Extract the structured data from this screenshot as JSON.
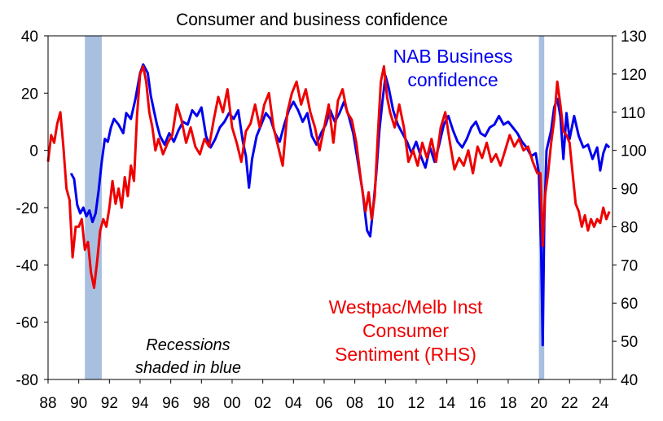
{
  "chart_data": {
    "type": "line",
    "title": "Consumer and business confidence",
    "x_range": [
      1988,
      2024.8
    ],
    "x_ticks": [
      {
        "year": 1988,
        "label": "88"
      },
      {
        "year": 1990,
        "label": "90"
      },
      {
        "year": 1992,
        "label": "92"
      },
      {
        "year": 1994,
        "label": "94"
      },
      {
        "year": 1996,
        "label": "96"
      },
      {
        "year": 1998,
        "label": "98"
      },
      {
        "year": 2000,
        "label": "00"
      },
      {
        "year": 2002,
        "label": "02"
      },
      {
        "year": 2004,
        "label": "04"
      },
      {
        "year": 2006,
        "label": "06"
      },
      {
        "year": 2008,
        "label": "08"
      },
      {
        "year": 2010,
        "label": "10"
      },
      {
        "year": 2012,
        "label": "12"
      },
      {
        "year": 2014,
        "label": "14"
      },
      {
        "year": 2016,
        "label": "16"
      },
      {
        "year": 2018,
        "label": "18"
      },
      {
        "year": 2020,
        "label": "20"
      },
      {
        "year": 2022,
        "label": "22"
      },
      {
        "year": 2024,
        "label": "24"
      }
    ],
    "y_left": {
      "range": [
        -80,
        40
      ],
      "ticks": [
        40,
        20,
        0,
        -20,
        -40,
        -60,
        -80
      ]
    },
    "y_right": {
      "range": [
        40,
        130
      ],
      "ticks": [
        130,
        120,
        110,
        100,
        90,
        80,
        70,
        60,
        50,
        40
      ]
    },
    "recessions": [
      [
        1990.4,
        1991.5
      ],
      [
        2020.0,
        2020.35
      ]
    ],
    "annotations": {
      "nab": [
        "NAB Business",
        "confidence"
      ],
      "westpac": [
        "Westpac/Melb Inst",
        "Consumer",
        "Sentiment (RHS)"
      ],
      "recession": [
        "Recessions",
        "shaded in blue"
      ]
    },
    "colors": {
      "nab": "#0000ee",
      "westpac": "#ee0000",
      "recession": "#a8bfe0"
    },
    "series": [
      {
        "name": "NAB Business confidence",
        "axis": "left",
        "points": [
          [
            1989.5,
            -8
          ],
          [
            1989.7,
            -10
          ],
          [
            1989.9,
            -19
          ],
          [
            1990.1,
            -22
          ],
          [
            1990.3,
            -20
          ],
          [
            1990.5,
            -23
          ],
          [
            1990.7,
            -21
          ],
          [
            1990.9,
            -25
          ],
          [
            1991.1,
            -22
          ],
          [
            1991.3,
            -14
          ],
          [
            1991.5,
            -4
          ],
          [
            1991.7,
            4
          ],
          [
            1991.9,
            3
          ],
          [
            1992.1,
            8
          ],
          [
            1992.3,
            11
          ],
          [
            1992.6,
            9
          ],
          [
            1992.9,
            6
          ],
          [
            1993.1,
            13
          ],
          [
            1993.4,
            11
          ],
          [
            1993.7,
            18
          ],
          [
            1994.0,
            27
          ],
          [
            1994.2,
            30
          ],
          [
            1994.5,
            27
          ],
          [
            1994.7,
            19
          ],
          [
            1994.9,
            14
          ],
          [
            1995.1,
            9
          ],
          [
            1995.3,
            5
          ],
          [
            1995.6,
            2
          ],
          [
            1995.9,
            6
          ],
          [
            1996.2,
            3
          ],
          [
            1996.5,
            7
          ],
          [
            1996.8,
            10
          ],
          [
            1997.1,
            9
          ],
          [
            1997.4,
            14
          ],
          [
            1997.7,
            12
          ],
          [
            1998.0,
            15
          ],
          [
            1998.3,
            5
          ],
          [
            1998.6,
            1
          ],
          [
            1998.9,
            4
          ],
          [
            1999.2,
            8
          ],
          [
            1999.5,
            10
          ],
          [
            1999.8,
            13
          ],
          [
            2000.1,
            11
          ],
          [
            2000.4,
            14
          ],
          [
            2000.7,
            3
          ],
          [
            2000.9,
            -2
          ],
          [
            2001.1,
            -13
          ],
          [
            2001.3,
            -3
          ],
          [
            2001.6,
            5
          ],
          [
            2001.9,
            9
          ],
          [
            2002.2,
            13
          ],
          [
            2002.5,
            11
          ],
          [
            2002.8,
            6
          ],
          [
            2003.1,
            3
          ],
          [
            2003.4,
            9
          ],
          [
            2003.7,
            14
          ],
          [
            2004.0,
            17
          ],
          [
            2004.3,
            14
          ],
          [
            2004.6,
            10
          ],
          [
            2004.9,
            13
          ],
          [
            2005.2,
            5
          ],
          [
            2005.5,
            2
          ],
          [
            2005.8,
            6
          ],
          [
            2006.1,
            9
          ],
          [
            2006.4,
            14
          ],
          [
            2006.7,
            10
          ],
          [
            2007.0,
            13
          ],
          [
            2007.3,
            17
          ],
          [
            2007.6,
            12
          ],
          [
            2007.9,
            6
          ],
          [
            2008.2,
            -4
          ],
          [
            2008.5,
            -14
          ],
          [
            2008.8,
            -28
          ],
          [
            2009.0,
            -30
          ],
          [
            2009.2,
            -20
          ],
          [
            2009.4,
            -8
          ],
          [
            2009.6,
            7
          ],
          [
            2009.8,
            17
          ],
          [
            2010.0,
            26
          ],
          [
            2010.2,
            22
          ],
          [
            2010.5,
            14
          ],
          [
            2010.8,
            9
          ],
          [
            2011.1,
            6
          ],
          [
            2011.4,
            3
          ],
          [
            2011.7,
            -1
          ],
          [
            2012.0,
            3
          ],
          [
            2012.3,
            -2
          ],
          [
            2012.6,
            -6
          ],
          [
            2012.9,
            1
          ],
          [
            2013.2,
            -4
          ],
          [
            2013.5,
            2
          ],
          [
            2013.8,
            9
          ],
          [
            2014.1,
            12
          ],
          [
            2014.4,
            7
          ],
          [
            2014.7,
            3
          ],
          [
            2015.0,
            1
          ],
          [
            2015.3,
            4
          ],
          [
            2015.6,
            8
          ],
          [
            2015.9,
            10
          ],
          [
            2016.2,
            6
          ],
          [
            2016.5,
            5
          ],
          [
            2016.8,
            8
          ],
          [
            2017.1,
            9
          ],
          [
            2017.4,
            12
          ],
          [
            2017.7,
            9
          ],
          [
            2018.0,
            10
          ],
          [
            2018.3,
            8
          ],
          [
            2018.6,
            6
          ],
          [
            2018.9,
            3
          ],
          [
            2019.2,
            1
          ],
          [
            2019.5,
            -2
          ],
          [
            2019.8,
            -1
          ],
          [
            2020.0,
            -8
          ],
          [
            2020.15,
            -35
          ],
          [
            2020.25,
            -68
          ],
          [
            2020.35,
            -25
          ],
          [
            2020.5,
            0
          ],
          [
            2020.8,
            7
          ],
          [
            2021.0,
            15
          ],
          [
            2021.2,
            18
          ],
          [
            2021.4,
            12
          ],
          [
            2021.6,
            -3
          ],
          [
            2021.8,
            13
          ],
          [
            2022.0,
            4
          ],
          [
            2022.3,
            12
          ],
          [
            2022.6,
            5
          ],
          [
            2022.9,
            1
          ],
          [
            2023.2,
            2
          ],
          [
            2023.5,
            -3
          ],
          [
            2023.8,
            1
          ],
          [
            2024.0,
            -7
          ],
          [
            2024.2,
            -1
          ],
          [
            2024.4,
            2
          ],
          [
            2024.6,
            1
          ]
        ]
      },
      {
        "name": "Westpac/Melb Inst Consumer Sentiment (RHS)",
        "axis": "right",
        "points": [
          [
            1988.0,
            97
          ],
          [
            1988.2,
            104
          ],
          [
            1988.4,
            102
          ],
          [
            1988.6,
            107
          ],
          [
            1988.8,
            110
          ],
          [
            1989.0,
            101
          ],
          [
            1989.2,
            90
          ],
          [
            1989.4,
            87
          ],
          [
            1989.6,
            72
          ],
          [
            1989.8,
            80
          ],
          [
            1990.0,
            80
          ],
          [
            1990.2,
            82
          ],
          [
            1990.4,
            74
          ],
          [
            1990.6,
            76
          ],
          [
            1990.8,
            68
          ],
          [
            1991.0,
            64
          ],
          [
            1991.2,
            71
          ],
          [
            1991.4,
            79
          ],
          [
            1991.6,
            82
          ],
          [
            1991.8,
            80
          ],
          [
            1992.0,
            85
          ],
          [
            1992.2,
            92
          ],
          [
            1992.4,
            86
          ],
          [
            1992.6,
            90
          ],
          [
            1992.8,
            85
          ],
          [
            1993.0,
            93
          ],
          [
            1993.2,
            88
          ],
          [
            1993.4,
            96
          ],
          [
            1993.6,
            92
          ],
          [
            1993.8,
            109
          ],
          [
            1994.0,
            120
          ],
          [
            1994.2,
            122
          ],
          [
            1994.4,
            118
          ],
          [
            1994.6,
            110
          ],
          [
            1994.8,
            106
          ],
          [
            1995.0,
            100
          ],
          [
            1995.2,
            103
          ],
          [
            1995.5,
            99
          ],
          [
            1995.8,
            102
          ],
          [
            1996.1,
            104
          ],
          [
            1996.4,
            112
          ],
          [
            1996.7,
            108
          ],
          [
            1997.0,
            102
          ],
          [
            1997.3,
            106
          ],
          [
            1997.6,
            101
          ],
          [
            1997.9,
            99
          ],
          [
            1998.2,
            103
          ],
          [
            1998.5,
            101
          ],
          [
            1998.8,
            108
          ],
          [
            1999.1,
            114
          ],
          [
            1999.4,
            110
          ],
          [
            1999.7,
            116
          ],
          [
            2000.0,
            106
          ],
          [
            2000.3,
            102
          ],
          [
            2000.6,
            97
          ],
          [
            2000.9,
            105
          ],
          [
            2001.2,
            107
          ],
          [
            2001.5,
            112
          ],
          [
            2001.8,
            106
          ],
          [
            2002.1,
            112
          ],
          [
            2002.4,
            115
          ],
          [
            2002.7,
            106
          ],
          [
            2003.0,
            101
          ],
          [
            2003.3,
            96
          ],
          [
            2003.6,
            110
          ],
          [
            2003.9,
            115
          ],
          [
            2004.2,
            118
          ],
          [
            2004.5,
            112
          ],
          [
            2004.8,
            116
          ],
          [
            2005.1,
            110
          ],
          [
            2005.4,
            106
          ],
          [
            2005.7,
            100
          ],
          [
            2006.0,
            106
          ],
          [
            2006.3,
            112
          ],
          [
            2006.6,
            102
          ],
          [
            2006.9,
            113
          ],
          [
            2007.2,
            116
          ],
          [
            2007.5,
            110
          ],
          [
            2007.8,
            108
          ],
          [
            2008.1,
            102
          ],
          [
            2008.4,
            92
          ],
          [
            2008.7,
            84
          ],
          [
            2008.9,
            89
          ],
          [
            2009.1,
            82
          ],
          [
            2009.3,
            88
          ],
          [
            2009.5,
            104
          ],
          [
            2009.7,
            118
          ],
          [
            2009.9,
            122
          ],
          [
            2010.1,
            114
          ],
          [
            2010.3,
            110
          ],
          [
            2010.6,
            106
          ],
          [
            2010.9,
            112
          ],
          [
            2011.2,
            106
          ],
          [
            2011.5,
            97
          ],
          [
            2011.8,
            100
          ],
          [
            2012.1,
            96
          ],
          [
            2012.4,
            102
          ],
          [
            2012.7,
            98
          ],
          [
            2013.0,
            103
          ],
          [
            2013.3,
            97
          ],
          [
            2013.6,
            106
          ],
          [
            2013.9,
            110
          ],
          [
            2014.2,
            102
          ],
          [
            2014.5,
            95
          ],
          [
            2014.8,
            98
          ],
          [
            2015.1,
            96
          ],
          [
            2015.4,
            100
          ],
          [
            2015.7,
            94
          ],
          [
            2016.0,
            101
          ],
          [
            2016.3,
            98
          ],
          [
            2016.6,
            102
          ],
          [
            2016.9,
            97
          ],
          [
            2017.2,
            99
          ],
          [
            2017.5,
            96
          ],
          [
            2017.8,
            100
          ],
          [
            2018.1,
            104
          ],
          [
            2018.4,
            101
          ],
          [
            2018.7,
            103
          ],
          [
            2019.0,
            100
          ],
          [
            2019.3,
            101
          ],
          [
            2019.6,
            97
          ],
          [
            2019.9,
            94
          ],
          [
            2020.1,
            94
          ],
          [
            2020.25,
            75
          ],
          [
            2020.4,
            88
          ],
          [
            2020.6,
            94
          ],
          [
            2020.8,
            102
          ],
          [
            2021.0,
            108
          ],
          [
            2021.2,
            118
          ],
          [
            2021.4,
            112
          ],
          [
            2021.6,
            105
          ],
          [
            2021.8,
            104
          ],
          [
            2022.0,
            102
          ],
          [
            2022.2,
            94
          ],
          [
            2022.4,
            86
          ],
          [
            2022.6,
            84
          ],
          [
            2022.8,
            80
          ],
          [
            2023.0,
            83
          ],
          [
            2023.2,
            79
          ],
          [
            2023.4,
            82
          ],
          [
            2023.6,
            80
          ],
          [
            2023.8,
            82
          ],
          [
            2024.0,
            81
          ],
          [
            2024.2,
            85
          ],
          [
            2024.4,
            82
          ],
          [
            2024.6,
            84
          ]
        ]
      }
    ]
  }
}
